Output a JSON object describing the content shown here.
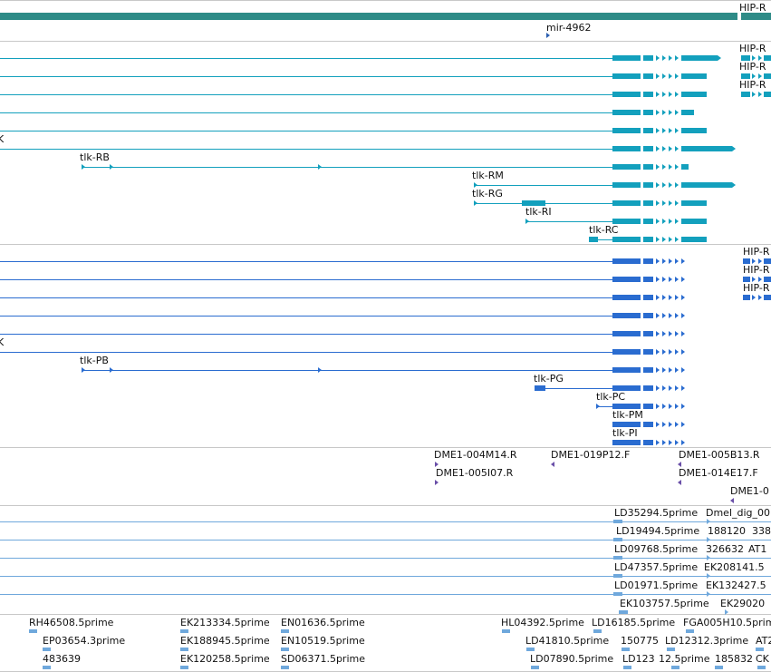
{
  "colors": {
    "gene": "#2e8b87",
    "transcript": "#13a0bd",
    "protein": "#2a6cd0",
    "clone": "#6a4fa8",
    "est": "#6fa8dc",
    "divider": "#c8c8c8"
  },
  "gene_track": {
    "labels": {
      "hip_r": "HIP-R",
      "mir": "mir-4962"
    }
  },
  "transcript_track": {
    "labels": {
      "tlk_rb": "tlk-RB",
      "tlk_rm": "tlk-RM",
      "tlk_rg": "tlk-RG",
      "tlk_ri": "tlk-RI",
      "tlk_rc": "tlk-RC",
      "hip_r1": "HIP-R",
      "hip_r2": "HIP-R",
      "hip_r3": "HIP-R",
      "trunc": "K"
    }
  },
  "protein_track": {
    "labels": {
      "tlk_pb": "tlk-PB",
      "tlk_pg": "tlk-PG",
      "tlk_pc": "tlk-PC",
      "tlk_pm": "tlk-PM",
      "tlk_pi": "tlk-PI",
      "hip_r1": "HIP-R",
      "hip_r2": "HIP-R",
      "hip_r3": "HIP-R",
      "trunc": "K"
    }
  },
  "clone_track": {
    "labels": {
      "c1": "DME1-004M14.R",
      "c2": "DME1-019P12.F",
      "c3": "DME1-005B13.R",
      "c4": "DME1-005I07.R",
      "c5": "DME1-014E17.F",
      "c6": "DME1-0"
    }
  },
  "est_track": {
    "labels": {
      "e1a": "LD35294.5prime",
      "e1b": "Dmel_dig_00",
      "e2a": "LD19494.5prime",
      "e2b": "188120",
      "e2c": "338",
      "e3a": "LD09768.5prime",
      "e3b": "326632",
      "e3c": "AT1",
      "e4a": "LD47357.5prime",
      "e4b": "EK208141.5",
      "e5a": "LD01971.5prime",
      "e5b": "EK132427.5",
      "e6a": "EK103757.5prime",
      "e6b": "EK29020"
    }
  },
  "cdna_track": {
    "labels": {
      "r1a": "RH46508.5prime",
      "r1b": "EK213334.5prime",
      "r1c": "EN01636.5prime",
      "r1d": "HL04392.5prime",
      "r1e": "LD16185.5prime",
      "r1f": "FGA005H10.5prime",
      "r2a": "EP03654.3prime",
      "r2b": "EK188945.5prime",
      "r2c": "EN10519.5prime",
      "r2d": "LD41810.5prime",
      "r2e": "150775",
      "r2f": "LD12312.3prime",
      "r2g": "AT2",
      "r3a": "483639",
      "r3b": "EK120258.5prime",
      "r3c": "SD06371.5prime",
      "r3d": "LD07890.5prime",
      "r3e": "LD123",
      "r3f": "12.5prime",
      "r3g": "185832",
      "r3h": "CK"
    }
  }
}
